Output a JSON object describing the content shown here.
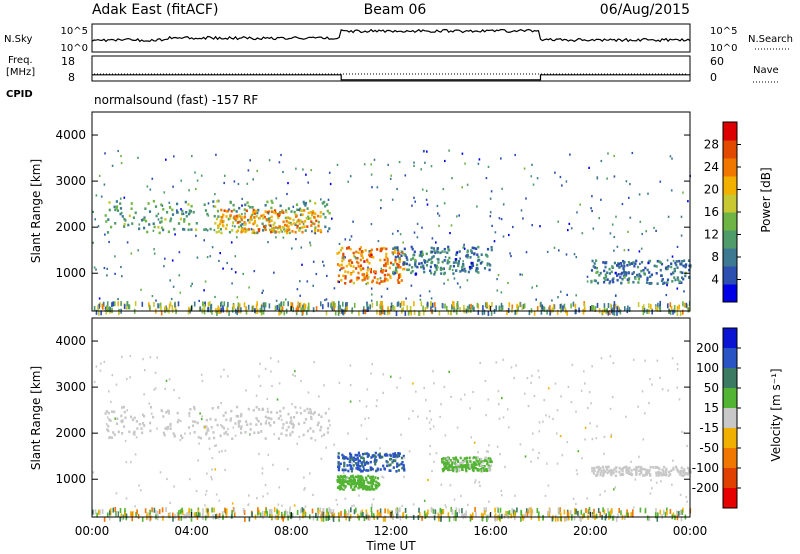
{
  "header": {
    "station": "Adak East (fitACF)",
    "beam": "Beam 06",
    "date": "06/Aug/2015"
  },
  "noise_panel": {
    "left_label": "N.Sky",
    "right_label": "N.Search",
    "left_ticks": [
      "10^5",
      "10^0"
    ],
    "right_ticks": [
      "10^5",
      "10^0"
    ]
  },
  "freq_panel": {
    "left_label_line1": "Freq.",
    "left_label_line2": "[MHz]",
    "right_label": "Nave",
    "left_ticks": [
      "18",
      "8"
    ],
    "right_ticks": [
      "60",
      "0"
    ],
    "freq_segments": [
      {
        "t_start": 0.0,
        "t_end": 10.0,
        "value_mhz": 10.5
      },
      {
        "t_start": 10.0,
        "t_end": 18.0,
        "value_mhz": 8.5
      },
      {
        "t_start": 18.0,
        "t_end": 24.0,
        "value_mhz": 10.5
      }
    ],
    "freq_range": [
      8,
      18
    ]
  },
  "cpid": {
    "label": "CPID",
    "text": "normalsound (fast) -157 RF"
  },
  "time_axis": {
    "title": "Time UT",
    "ticks": [
      "00:00",
      "04:00",
      "08:00",
      "12:00",
      "16:00",
      "20:00",
      "00:00"
    ],
    "range_hours": [
      0,
      24
    ]
  },
  "colors": {
    "background": "#ffffff",
    "axes": "#000000",
    "ground_scatter": "#b4b4b4"
  },
  "chart_data": [
    {
      "type": "heatmap",
      "name": "power",
      "ylabel": "Slant Range [km]",
      "yticks": [
        "1000",
        "2000",
        "3000",
        "4000"
      ],
      "ylim": [
        180,
        4500
      ],
      "xlim": [
        0,
        24
      ],
      "colorbar": {
        "label": "Power [dB]",
        "ticks": [
          "4",
          "8",
          "12",
          "16",
          "20",
          "24",
          "28"
        ],
        "range": [
          0,
          32
        ],
        "colors": [
          "#0000e6",
          "#2c4fb0",
          "#3d7a92",
          "#4f9c6a",
          "#6fb545",
          "#c8c832",
          "#f2b000",
          "#f07800",
          "#e24a00",
          "#dc0000"
        ]
      },
      "features": [
        {
          "t0": 0.5,
          "t1": 9.5,
          "r0": 1900,
          "r1": 2600,
          "value_db": 12
        },
        {
          "t0": 5.0,
          "t1": 9.2,
          "r0": 1900,
          "r1": 2400,
          "value_db": 22
        },
        {
          "t0": 9.8,
          "t1": 12.5,
          "r0": 800,
          "r1": 1600,
          "value_db": 24
        },
        {
          "t0": 12.0,
          "t1": 16.0,
          "r0": 1000,
          "r1": 1600,
          "value_db": 8
        },
        {
          "t0": 20.0,
          "t1": 24.0,
          "r0": 800,
          "r1": 1300,
          "value_db": 8
        }
      ]
    },
    {
      "type": "heatmap",
      "name": "velocity",
      "ylabel": "Slant Range [km]",
      "yticks": [
        "1000",
        "2000",
        "3000",
        "4000"
      ],
      "ylim": [
        180,
        4500
      ],
      "xlim": [
        0,
        24
      ],
      "colorbar": {
        "label": "Velocity [m s⁻¹]",
        "ticks": [
          "200",
          "100",
          "50",
          "15",
          "-15",
          "-50",
          "-100",
          "-200"
        ],
        "range": [
          -250,
          250
        ],
        "colors": [
          "#0a14d2",
          "#2a54c4",
          "#3c7a64",
          "#52b432",
          "#c8c8c8",
          "#f0b000",
          "#f07800",
          "#e04000",
          "#e60000"
        ]
      },
      "features": [
        {
          "t0": 0.5,
          "t1": 9.5,
          "r0": 1900,
          "r1": 2600,
          "value_ms": 0
        },
        {
          "t0": 9.8,
          "t1": 12.5,
          "r0": 1200,
          "r1": 1600,
          "value_ms": 150
        },
        {
          "t0": 9.8,
          "t1": 11.5,
          "r0": 800,
          "r1": 1100,
          "value_ms": 50
        },
        {
          "t0": 14.0,
          "t1": 16.0,
          "r0": 1200,
          "r1": 1500,
          "value_ms": 40
        },
        {
          "t0": 20.0,
          "t1": 24.0,
          "r0": 1100,
          "r1": 1300,
          "value_ms": 0
        }
      ]
    }
  ]
}
